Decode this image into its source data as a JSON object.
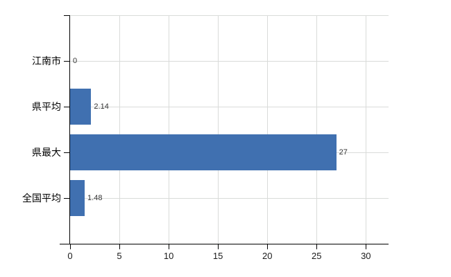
{
  "chart_data": {
    "type": "bar",
    "orientation": "horizontal",
    "title": "",
    "xlabel": "",
    "ylabel": "",
    "categories": [
      "江南市",
      "県平均",
      "県最大",
      "全国平均"
    ],
    "values": [
      0,
      2.14,
      27,
      1.48
    ],
    "value_labels": [
      "0",
      "2.14",
      "27",
      "1.48"
    ],
    "x_ticks": [
      0,
      5,
      10,
      15,
      20,
      25,
      30
    ],
    "xlim": [
      0,
      32.3
    ],
    "grid": true,
    "legend": false,
    "colors": {
      "bar": "#4070b0",
      "grid": "#d9dbd9",
      "axis": "#000000",
      "category_label": "#000000",
      "value_label": "#333333",
      "tick_label": "#1a1a1a",
      "background": "#ffffff"
    }
  }
}
